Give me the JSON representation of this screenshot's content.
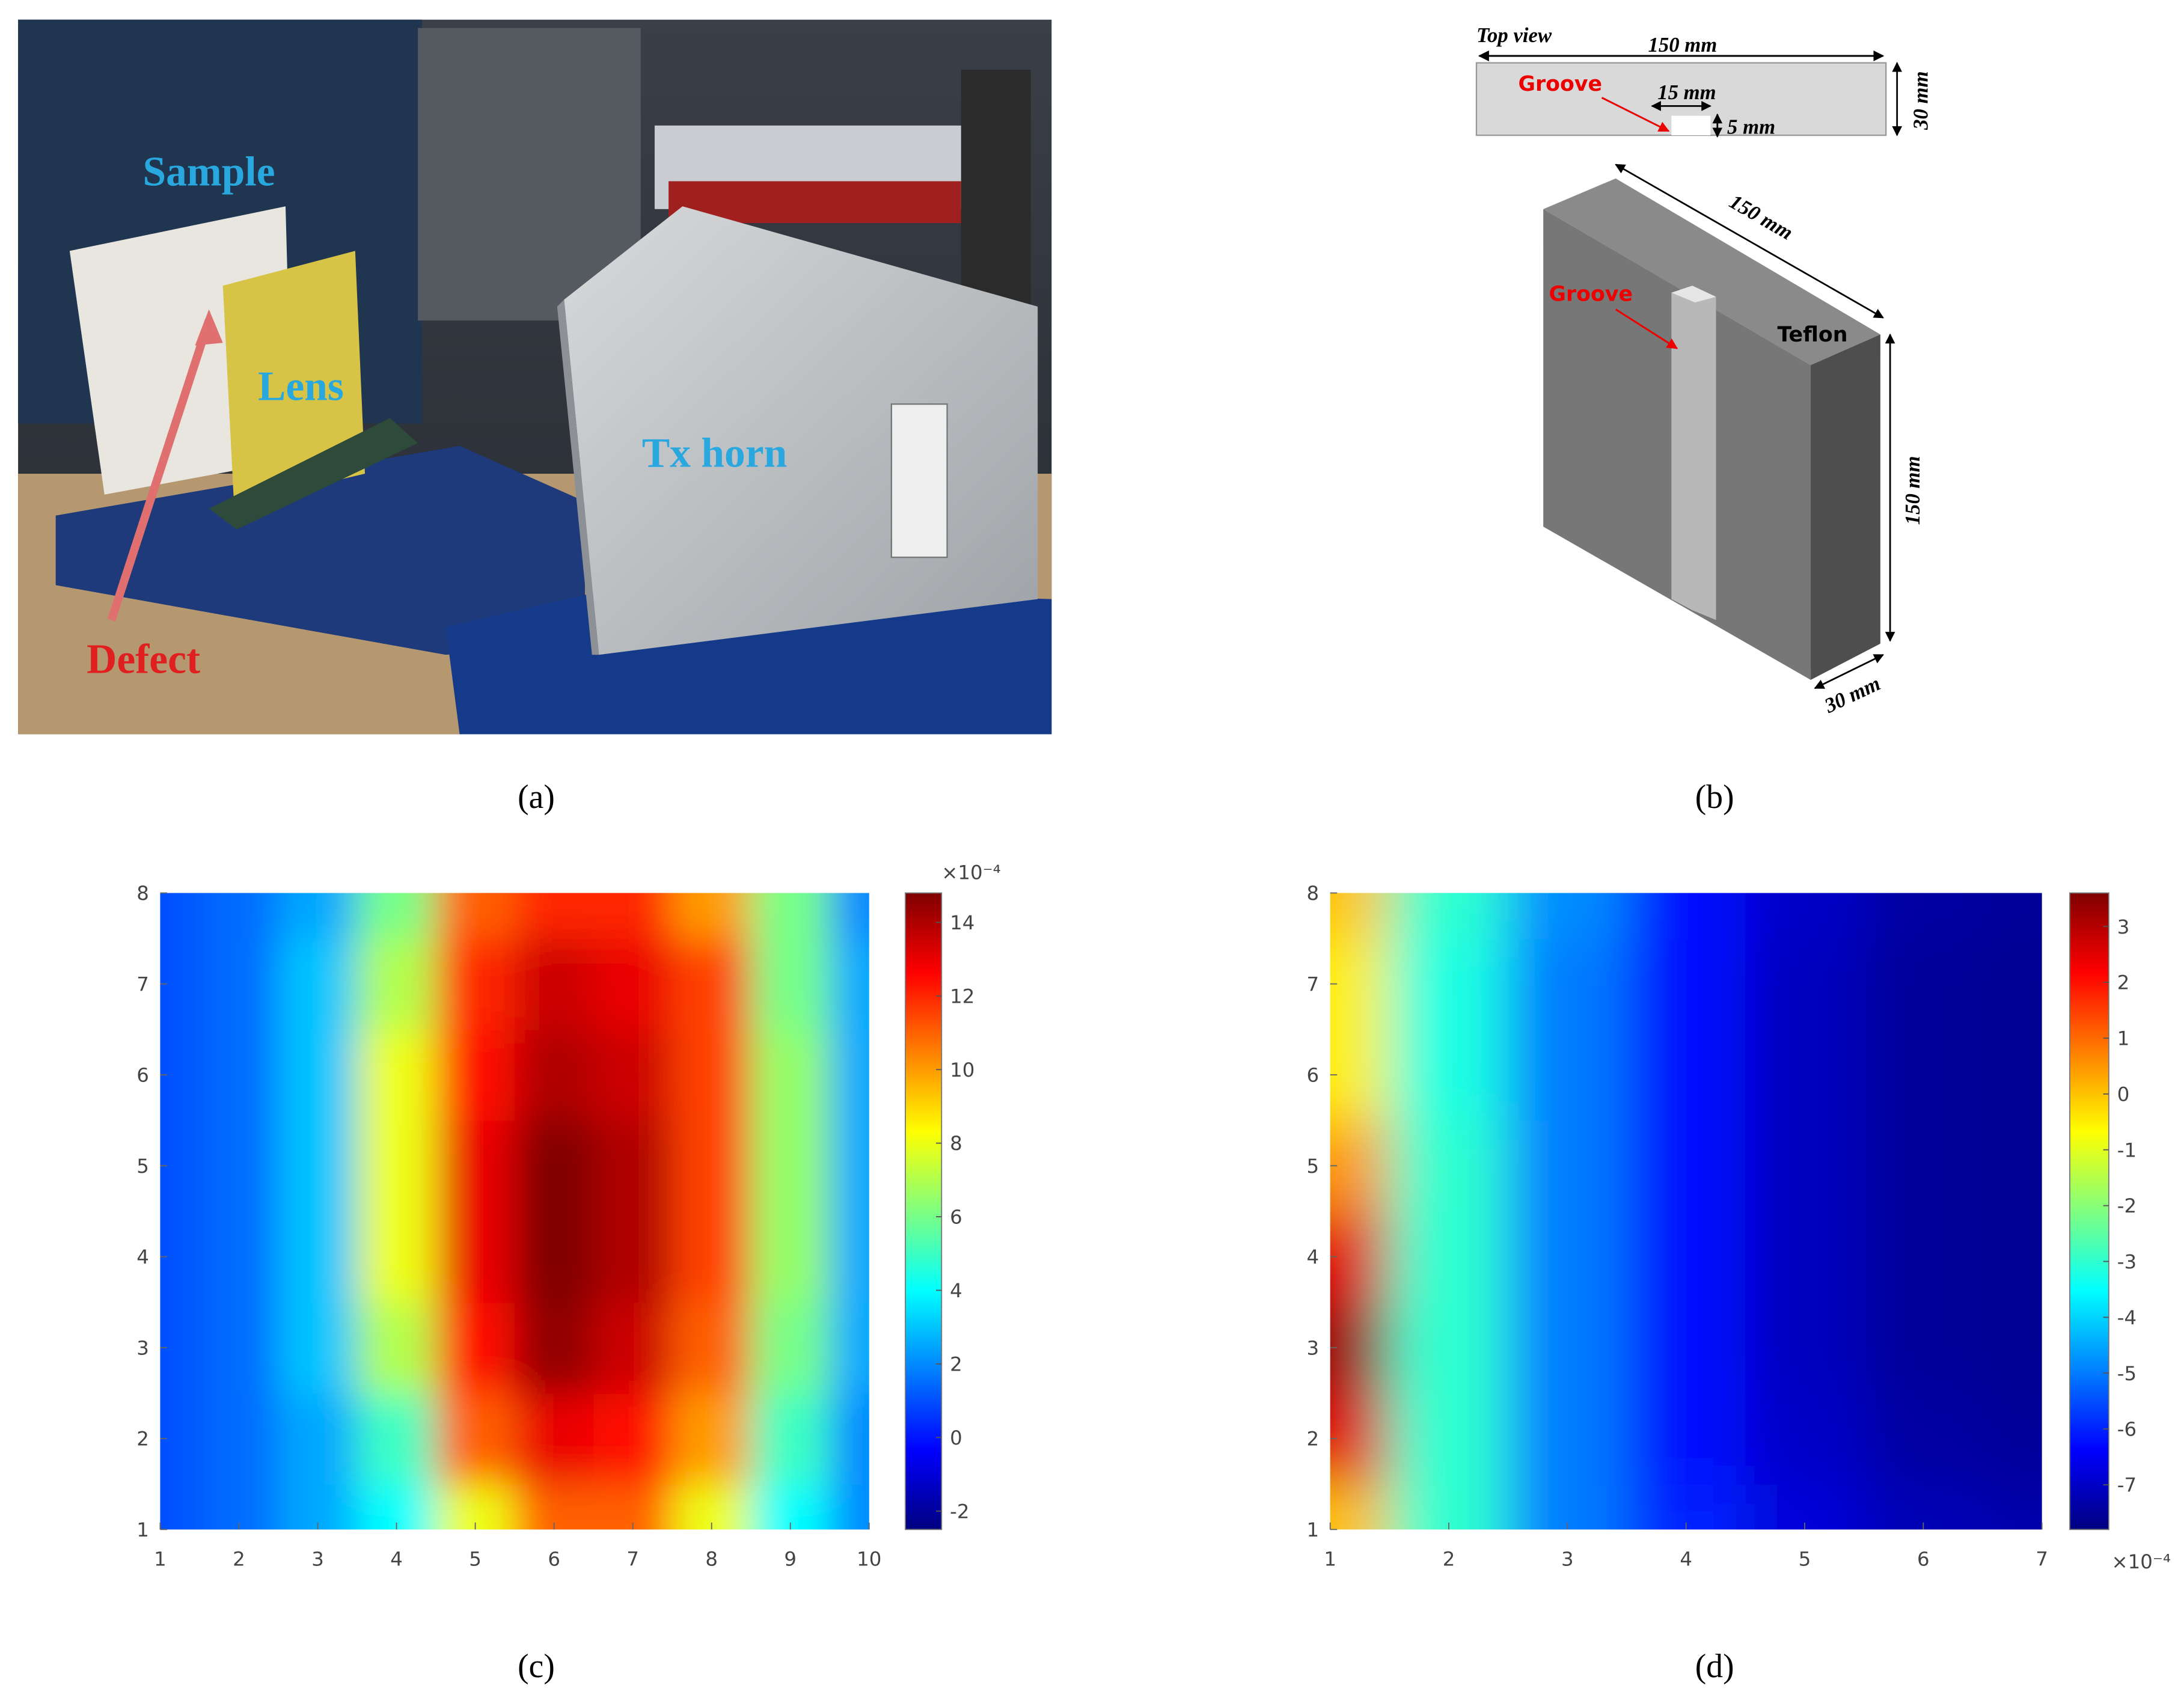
{
  "panel_a": {
    "labels": {
      "sample": "Sample",
      "lens": "Lens",
      "tx_horn": "Tx horn",
      "defect": "Defect"
    },
    "caption": "(a)"
  },
  "panel_b": {
    "top_view": "Top view",
    "top_length": "150 mm",
    "top_groove": "Groove",
    "groove_width": "15 mm",
    "groove_depth": "5 mm",
    "top_width": "30 mm",
    "depth_label": "150 mm",
    "groove": "Groove",
    "material": "Teflon",
    "height": "150 mm",
    "thickness": "30 mm",
    "caption": "(b)"
  },
  "chart_data": [
    {
      "type": "heatmap",
      "caption": "(c)",
      "colormap": "jet",
      "x": [
        1,
        2,
        3,
        4,
        5,
        6,
        7,
        8,
        9,
        10
      ],
      "y": [
        1,
        2,
        3,
        4,
        5,
        6,
        7,
        8
      ],
      "z": [
        [
          1,
          1.5,
          2.5,
          4,
          8,
          11,
          11,
          8,
          4,
          2
        ],
        [
          1,
          1.5,
          2.5,
          5,
          11,
          13,
          12.5,
          10,
          5,
          2
        ],
        [
          1,
          1.5,
          3,
          7,
          12.5,
          14.5,
          13.5,
          11,
          6,
          2.5
        ],
        [
          1,
          1.5,
          3,
          8,
          13,
          14.8,
          14,
          11.5,
          6.5,
          2.5
        ],
        [
          1,
          1.5,
          3,
          8,
          13,
          14.8,
          14,
          11.5,
          6.5,
          2.5
        ],
        [
          1,
          1.5,
          3,
          8,
          12.5,
          14,
          13.5,
          11.5,
          6.5,
          2.5
        ],
        [
          1,
          1.5,
          3,
          7,
          12,
          13.5,
          13,
          11.5,
          6,
          2.5
        ],
        [
          1,
          1.5,
          2.5,
          6,
          11,
          12,
          12,
          10,
          6,
          2
        ]
      ],
      "xlim": [
        1,
        10
      ],
      "ylim": [
        1,
        8
      ],
      "xticks": [
        1,
        2,
        3,
        4,
        5,
        6,
        7,
        8,
        9,
        10
      ],
      "yticks": [
        1,
        2,
        3,
        4,
        5,
        6,
        7,
        8
      ],
      "clim": [
        -2.5,
        14.8
      ],
      "cticks": [
        -2,
        0,
        2,
        4,
        6,
        8,
        10,
        12,
        14
      ],
      "cbar_exponent": "×10⁻⁴",
      "exponent_corner": "top"
    },
    {
      "type": "heatmap",
      "caption": "(d)",
      "colormap": "jet",
      "x": [
        1,
        2,
        3,
        4,
        5,
        6,
        7
      ],
      "y": [
        1,
        2,
        3,
        4,
        5,
        6,
        7,
        8
      ],
      "z": [
        [
          0,
          -3,
          -5,
          -6,
          -6.8,
          -7.2,
          -7.3
        ],
        [
          2.5,
          -3,
          -5,
          -6.2,
          -7,
          -7.4,
          -7.5
        ],
        [
          3.3,
          -3,
          -5,
          -6.3,
          -7.1,
          -7.5,
          -7.6
        ],
        [
          2.5,
          -3,
          -5,
          -6.3,
          -7.1,
          -7.5,
          -7.6
        ],
        [
          0.5,
          -3,
          -5,
          -6.3,
          -7.1,
          -7.5,
          -7.6
        ],
        [
          -0.5,
          -3.2,
          -5,
          -6.3,
          -7.1,
          -7.5,
          -7.6
        ],
        [
          -0.5,
          -3.2,
          -5,
          -6.3,
          -7.1,
          -7.5,
          -7.6
        ],
        [
          0,
          -3,
          -4.8,
          -6.2,
          -7,
          -7.4,
          -7.5
        ]
      ],
      "xlim": [
        1,
        7
      ],
      "ylim": [
        1,
        8
      ],
      "xticks": [
        1,
        2,
        3,
        4,
        5,
        6,
        7
      ],
      "yticks": [
        1,
        2,
        3,
        4,
        5,
        6,
        7,
        8
      ],
      "clim": [
        -7.8,
        3.6
      ],
      "cticks": [
        -7,
        -6,
        -5,
        -4,
        -3,
        -2,
        -1,
        0,
        1,
        2,
        3
      ],
      "cbar_exponent": "×10⁻⁴",
      "exponent_corner": "bottom"
    }
  ]
}
